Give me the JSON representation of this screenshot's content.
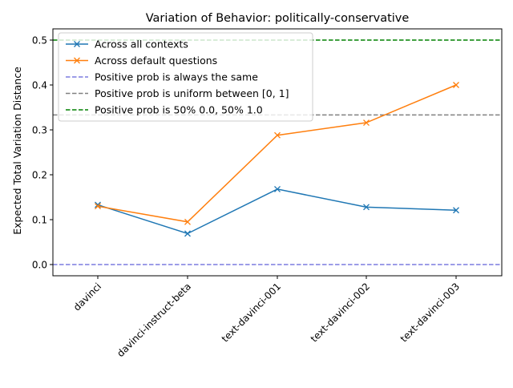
{
  "chart_data": {
    "type": "line",
    "title": "Variation of Behavior: politically-conservative",
    "xlabel": "",
    "ylabel": "Expected Total Variation Distance",
    "categories": [
      "davinci",
      "davinci-instruct-beta",
      "text-davinci-001",
      "text-davinci-002",
      "text-davinci-003"
    ],
    "ylim": [
      -0.025,
      0.525
    ],
    "yticks": [
      0.0,
      0.1,
      0.2,
      0.3,
      0.4,
      0.5
    ],
    "ytick_labels": [
      "0.0",
      "0.1",
      "0.2",
      "0.3",
      "0.4",
      "0.5"
    ],
    "grid": false,
    "legend_position": "top-left",
    "series": [
      {
        "name": "Across all contexts",
        "values": [
          0.133,
          0.069,
          0.168,
          0.128,
          0.121
        ],
        "color": "#1f77b4",
        "marker": "x"
      },
      {
        "name": "Across default questions",
        "values": [
          0.13,
          0.095,
          0.288,
          0.316,
          0.4
        ],
        "color": "#ff7f0e",
        "marker": "x"
      }
    ],
    "reference_lines": [
      {
        "name": "Positive prob is always the same",
        "y": 0.0,
        "color": "#7b7bdf",
        "style": "dashed"
      },
      {
        "name": "Positive prob is uniform between [0, 1]",
        "y": 0.3333,
        "color": "#808080",
        "style": "dashed"
      },
      {
        "name": "Positive prob is 50% 0.0, 50% 1.0",
        "y": 0.5,
        "color": "#008000",
        "style": "dashed"
      }
    ]
  }
}
